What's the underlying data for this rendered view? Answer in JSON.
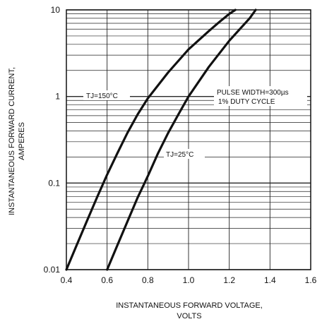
{
  "chart_data": {
    "type": "line",
    "title": "",
    "xlabel": [
      "INSTANTANEOUS FORWARD VOLTAGE,",
      "VOLTS"
    ],
    "ylabel": [
      "INSTANTANEOUS FORWARD CURRENT,",
      "AMPERES"
    ],
    "xlim": [
      0.4,
      1.6
    ],
    "ylim": [
      0.01,
      10
    ],
    "yscale": "log",
    "grid": true,
    "x_ticks": [
      "0.4",
      "0.6",
      "0.8",
      "1.0",
      "1.2",
      "1.4",
      "1.6"
    ],
    "y_ticks": [
      "0.01",
      "0.1",
      "1",
      "10"
    ],
    "series": [
      {
        "name": "TJ=150°C",
        "x": [
          0.4,
          0.45,
          0.5,
          0.55,
          0.6,
          0.65,
          0.7,
          0.75,
          0.8,
          0.9,
          1.0,
          1.1,
          1.15,
          1.2,
          1.23
        ],
        "y": [
          0.01,
          0.019,
          0.036,
          0.068,
          0.125,
          0.22,
          0.38,
          0.62,
          0.95,
          1.9,
          3.5,
          5.7,
          7.2,
          9.0,
          10
        ]
      },
      {
        "name": "TJ=25°C",
        "x": [
          0.6,
          0.65,
          0.7,
          0.75,
          0.8,
          0.85,
          0.9,
          0.95,
          1.0,
          1.1,
          1.2,
          1.3,
          1.33
        ],
        "y": [
          0.01,
          0.019,
          0.036,
          0.068,
          0.12,
          0.22,
          0.38,
          0.62,
          1.0,
          2.2,
          4.4,
          8.0,
          10
        ]
      }
    ],
    "annotations": {
      "t150": "TJ=150°C",
      "t25": "TJ=25°C",
      "pulse": "PULSE WIDTH=300µs",
      "duty": "1% DUTY CYCLE"
    }
  }
}
